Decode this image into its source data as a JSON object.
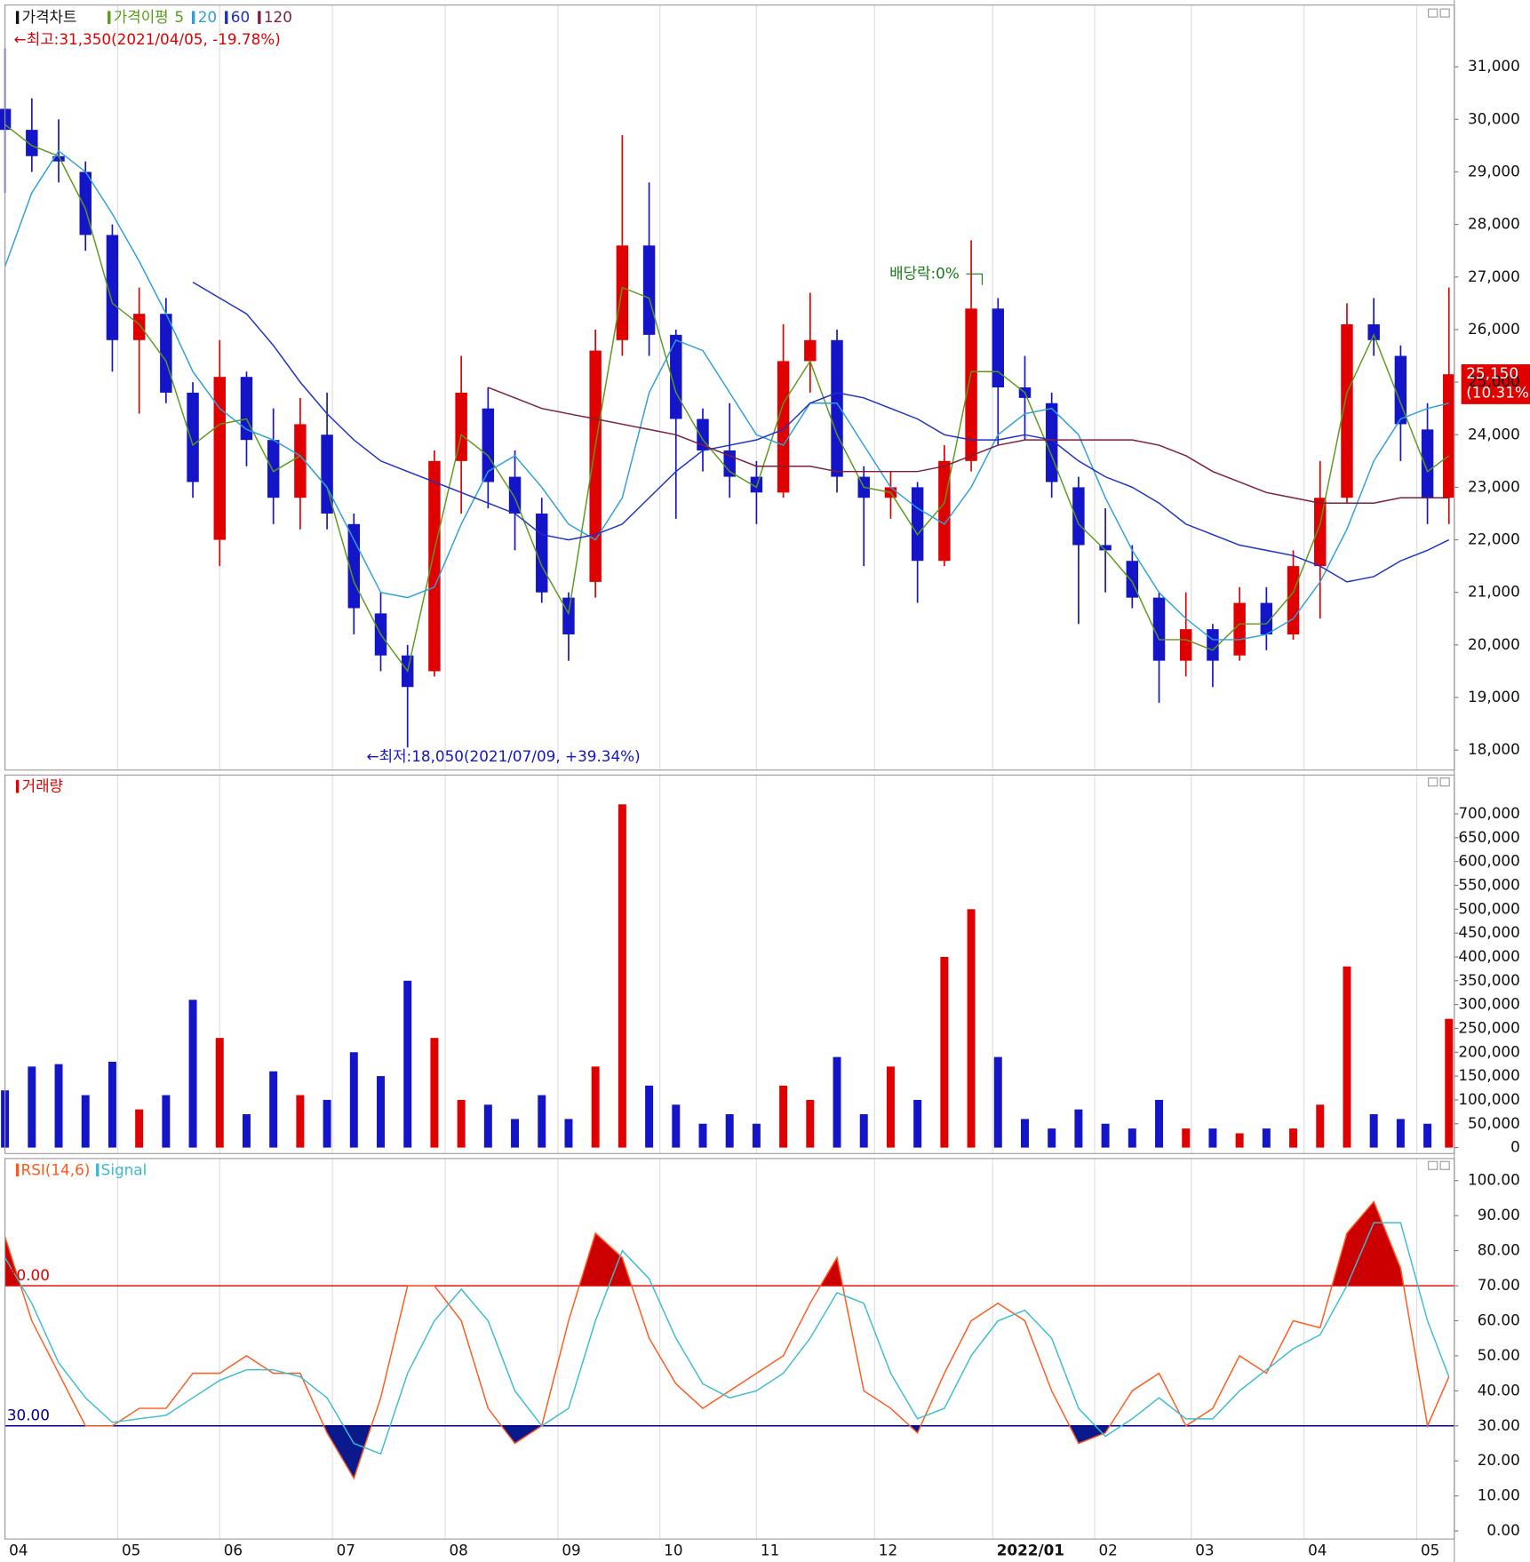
{
  "chart_data": [
    {
      "type": "candlestick",
      "title": "가격차트",
      "ma_label": "가격이평",
      "x": [
        0,
        5,
        10,
        15,
        20,
        25,
        30,
        35,
        40,
        45,
        50,
        55,
        60,
        65,
        70,
        75,
        80,
        85,
        90,
        95,
        100,
        105,
        110,
        115,
        120,
        125,
        130,
        135,
        140,
        145,
        150,
        155,
        160,
        165,
        170,
        175,
        180,
        185,
        190,
        195,
        200,
        205,
        210,
        215,
        220,
        225,
        230,
        235,
        240,
        245,
        250,
        255,
        260,
        265,
        269
      ],
      "open": [
        30200,
        29800,
        29300,
        29000,
        27800,
        25800,
        26300,
        24800,
        22000,
        25100,
        23900,
        22800,
        24000,
        22300,
        20600,
        19800,
        19500,
        23500,
        24500,
        23200,
        22500,
        20900,
        21200,
        25800,
        27600,
        25900,
        24300,
        23700,
        23200,
        22900,
        25400,
        25800,
        23200,
        22800,
        23000,
        21600,
        23500,
        26400,
        24900,
        24600,
        23000,
        21900,
        21600,
        20900,
        19700,
        20300,
        19800,
        20800,
        20200,
        21500,
        22800,
        26100,
        25500,
        24100,
        22800
      ],
      "high": [
        31350,
        30400,
        30000,
        29200,
        28000,
        26800,
        26600,
        25000,
        25800,
        25200,
        24500,
        24700,
        24800,
        22500,
        21000,
        20000,
        23700,
        25500,
        24900,
        23700,
        22800,
        21000,
        26000,
        29700,
        28800,
        26000,
        24500,
        24600,
        23500,
        26100,
        26700,
        26000,
        23400,
        23300,
        23100,
        23800,
        27700,
        26600,
        25500,
        24800,
        23200,
        22600,
        21900,
        21000,
        21000,
        20400,
        21100,
        21100,
        21800,
        23500,
        26500,
        26600,
        25700,
        24600,
        26800
      ],
      "low": [
        28600,
        29000,
        28800,
        27500,
        25200,
        24400,
        24600,
        22800,
        21500,
        23400,
        22300,
        22200,
        22200,
        20200,
        19500,
        18050,
        19400,
        22500,
        22600,
        21800,
        20800,
        19700,
        20900,
        25500,
        25500,
        22400,
        23300,
        22800,
        22300,
        22800,
        24800,
        22900,
        21500,
        22400,
        20800,
        21500,
        23300,
        23800,
        23900,
        22800,
        20400,
        21000,
        20700,
        18900,
        19400,
        19200,
        19700,
        19900,
        20100,
        20500,
        22700,
        25500,
        23500,
        22300,
        22300
      ],
      "close": [
        29800,
        29300,
        29200,
        27800,
        25800,
        26300,
        24800,
        23100,
        25100,
        23900,
        22800,
        24200,
        22500,
        20700,
        19800,
        19200,
        23500,
        24800,
        23100,
        22500,
        21000,
        20200,
        25600,
        27600,
        25900,
        24300,
        23700,
        23200,
        22900,
        25400,
        25800,
        23200,
        22800,
        23000,
        21600,
        23500,
        26400,
        24900,
        24700,
        23100,
        21900,
        21800,
        20900,
        19700,
        20300,
        19700,
        20800,
        20200,
        21500,
        22800,
        26100,
        25800,
        24200,
        22800,
        25150
      ],
      "up_color": "#e00000",
      "down_color": "#1414c8",
      "moving_averages": [
        {
          "name": "5",
          "color": "#5a9a1a",
          "values": [
            29900,
            29500,
            29300,
            28300,
            26500,
            26100,
            25400,
            23800,
            24200,
            24300,
            23300,
            23600,
            23000,
            21200,
            20200,
            19500,
            21800,
            24000,
            23600,
            22800,
            21500,
            20600,
            23800,
            26800,
            26600,
            24800,
            23900,
            23300,
            23000,
            24600,
            25400,
            24000,
            23000,
            22900,
            22100,
            22700,
            25200,
            25200,
            24800,
            23600,
            22300,
            21800,
            21200,
            20100,
            20100,
            19900,
            20400,
            20400,
            21000,
            22300,
            24800,
            25900,
            24600,
            23300,
            23600
          ]
        },
        {
          "name": "20",
          "color": "#2e9fd8",
          "values": [
            27200,
            28600,
            29400,
            29000,
            28200,
            27300,
            26300,
            25200,
            24500,
            24100,
            23900,
            23600,
            23000,
            22000,
            21000,
            20900,
            21100,
            22300,
            23300,
            23600,
            23000,
            22300,
            22000,
            22800,
            24800,
            25800,
            25600,
            24800,
            24000,
            23800,
            24600,
            24600,
            23800,
            23000,
            22600,
            22300,
            23000,
            24000,
            24400,
            24500,
            24000,
            22800,
            21800,
            21000,
            20500,
            20100,
            20100,
            20200,
            20500,
            21200,
            22200,
            23500,
            24300,
            24500,
            24600
          ]
        },
        {
          "name": "60",
          "color": "#1c2fc4",
          "values": [
            null,
            null,
            null,
            null,
            null,
            null,
            null,
            26900,
            26600,
            26300,
            25700,
            25000,
            24400,
            23900,
            23500,
            23300,
            23100,
            22900,
            22700,
            22500,
            22100,
            22000,
            22100,
            22300,
            22800,
            23300,
            23700,
            23800,
            23900,
            24100,
            24600,
            24800,
            24700,
            24500,
            24300,
            24000,
            23900,
            23900,
            24000,
            23900,
            23500,
            23200,
            23000,
            22700,
            22300,
            22100,
            21900,
            21800,
            21700,
            21500,
            21200,
            21300,
            21600,
            21800,
            22000
          ]
        },
        {
          "name": "120",
          "color": "#7a1f3d",
          "values": [
            null,
            null,
            null,
            null,
            null,
            null,
            null,
            null,
            null,
            null,
            null,
            null,
            null,
            null,
            null,
            null,
            null,
            null,
            24900,
            24700,
            24500,
            24400,
            24300,
            24200,
            24100,
            24000,
            23800,
            23600,
            23400,
            23400,
            23400,
            23300,
            23300,
            23300,
            23300,
            23400,
            23600,
            23800,
            23900,
            23900,
            23900,
            23900,
            23900,
            23800,
            23600,
            23300,
            23100,
            22900,
            22800,
            22700,
            22700,
            22700,
            22800,
            22800,
            22800
          ]
        }
      ],
      "annotations": [
        {
          "text": "←최고:31,350(2021/04/05, -19.78%)"
        },
        {
          "text": "←최저:18,050(2021/07/09, +39.34%)"
        },
        {
          "text": "배당락:0%"
        }
      ],
      "last_price": {
        "value": 25150,
        "label": "25,150"
      },
      "change_label": "(10.31%)",
      "xlim": [
        0,
        270
      ],
      "xticks": [
        {
          "value": 0,
          "label": "04"
        },
        {
          "value": 21,
          "label": "05"
        },
        {
          "value": 40,
          "label": "06"
        },
        {
          "value": 61,
          "label": "07"
        },
        {
          "value": 82,
          "label": "08"
        },
        {
          "value": 103,
          "label": "09"
        },
        {
          "value": 122,
          "label": "10"
        },
        {
          "value": 140,
          "label": "11"
        },
        {
          "value": 162,
          "label": "12"
        },
        {
          "value": 184,
          "label": "2022/01"
        },
        {
          "value": 203,
          "label": "02"
        },
        {
          "value": 221,
          "label": "03"
        },
        {
          "value": 242,
          "label": "04"
        },
        {
          "value": 263,
          "label": "05"
        }
      ],
      "ylim": [
        17620,
        32175
      ],
      "yticks": [
        {
          "value": 18000,
          "label": "18,000"
        },
        {
          "value": 19000,
          "label": "19,000"
        },
        {
          "value": 20000,
          "label": "20,000"
        },
        {
          "value": 21000,
          "label": "21,000"
        },
        {
          "value": 22000,
          "label": "22,000"
        },
        {
          "value": 23000,
          "label": "23,000"
        },
        {
          "value": 24000,
          "label": "24,000"
        },
        {
          "value": 25000,
          "label": "25,000"
        },
        {
          "value": 26000,
          "label": "26,000"
        },
        {
          "value": 27000,
          "label": "27,000"
        },
        {
          "value": 28000,
          "label": "28,000"
        },
        {
          "value": 29000,
          "label": "29,000"
        },
        {
          "value": 30000,
          "label": "30,000"
        },
        {
          "value": 31000,
          "label": "31,000"
        }
      ],
      "grid": "x"
    },
    {
      "type": "bar",
      "title": "거래량",
      "color": "#e00000",
      "values": [
        120000,
        170000,
        175000,
        110000,
        180000,
        80000,
        110000,
        310000,
        230000,
        70000,
        160000,
        110000,
        100000,
        200000,
        150000,
        350000,
        230000,
        100000,
        90000,
        60000,
        110000,
        60000,
        170000,
        720000,
        130000,
        90000,
        50000,
        70000,
        50000,
        130000,
        100000,
        190000,
        70000,
        170000,
        100000,
        400000,
        500000,
        190000,
        60000,
        40000,
        80000,
        50000,
        40000,
        100000,
        40000,
        40000,
        30000,
        40000,
        40000,
        90000,
        380000,
        70000,
        60000,
        50000,
        270000
      ],
      "ylim": [
        -12500,
        781500
      ],
      "yticks": [
        0,
        {
          "value": 50000,
          "label": "50,000"
        },
        {
          "value": 100000,
          "label": "100,000"
        },
        {
          "value": 150000,
          "label": "150,000"
        },
        {
          "value": 200000,
          "label": "200,000"
        },
        {
          "value": 250000,
          "label": "250,000"
        },
        {
          "value": 300000,
          "label": "300,000"
        },
        {
          "value": 350000,
          "label": "350,000"
        },
        {
          "value": 400000,
          "label": "400,000"
        },
        {
          "value": 450000,
          "label": "450,000"
        },
        {
          "value": 500000,
          "label": "500,000"
        },
        {
          "value": 550000,
          "label": "550,000"
        },
        {
          "value": 600000,
          "label": "600,000"
        },
        {
          "value": 650000,
          "label": "650,000"
        },
        {
          "value": 700000,
          "label": "700,000"
        }
      ]
    },
    {
      "type": "line",
      "series": [
        {
          "name": "RSI(14,6)",
          "color": "#ff5a1e",
          "values": [
            84,
            60,
            45,
            30,
            30,
            35,
            35,
            45,
            45,
            50,
            45,
            45,
            28,
            15,
            38,
            70,
            70,
            60,
            35,
            25,
            30,
            60,
            85,
            78,
            55,
            42,
            35,
            40,
            45,
            50,
            65,
            78,
            40,
            35,
            28,
            45,
            60,
            65,
            60,
            40,
            25,
            28,
            40,
            45,
            30,
            35,
            50,
            45,
            60,
            58,
            85,
            94,
            75,
            30,
            44
          ]
        },
        {
          "name": "Signal",
          "color": "#3cbcd0",
          "values": [
            78,
            65,
            48,
            38,
            31,
            32,
            33,
            38,
            43,
            46,
            46,
            44,
            38,
            25,
            22,
            45,
            60,
            69,
            60,
            40,
            30,
            35,
            60,
            80,
            72,
            55,
            42,
            38,
            40,
            45,
            55,
            68,
            65,
            45,
            32,
            35,
            50,
            60,
            63,
            55,
            35,
            27,
            32,
            38,
            32,
            32,
            40,
            46,
            52,
            56,
            70,
            88,
            88,
            60,
            44
          ]
        }
      ],
      "levels": [
        {
          "value": 70,
          "label": "70.00",
          "color": "#e00000",
          "fill": "#cc0000"
        },
        {
          "value": 30,
          "label": "30.00",
          "color": "#00008b",
          "fill": "#0a1a8c"
        }
      ],
      "ylim": [
        -2.3,
        106.3
      ],
      "yticks": [
        {
          "value": 0,
          "label": "0.00"
        },
        {
          "value": 10,
          "label": "10.00"
        },
        {
          "value": 20,
          "label": "20.00"
        },
        {
          "value": 30,
          "label": "30.00"
        },
        {
          "value": 40,
          "label": "40.00"
        },
        {
          "value": 50,
          "label": "50.00"
        },
        {
          "value": 60,
          "label": "60.00"
        },
        {
          "value": 70,
          "label": "70.00"
        },
        {
          "value": 80,
          "label": "80.00"
        },
        {
          "value": 90,
          "label": "90.00"
        },
        {
          "value": 100,
          "label": "100.00"
        }
      ]
    }
  ]
}
